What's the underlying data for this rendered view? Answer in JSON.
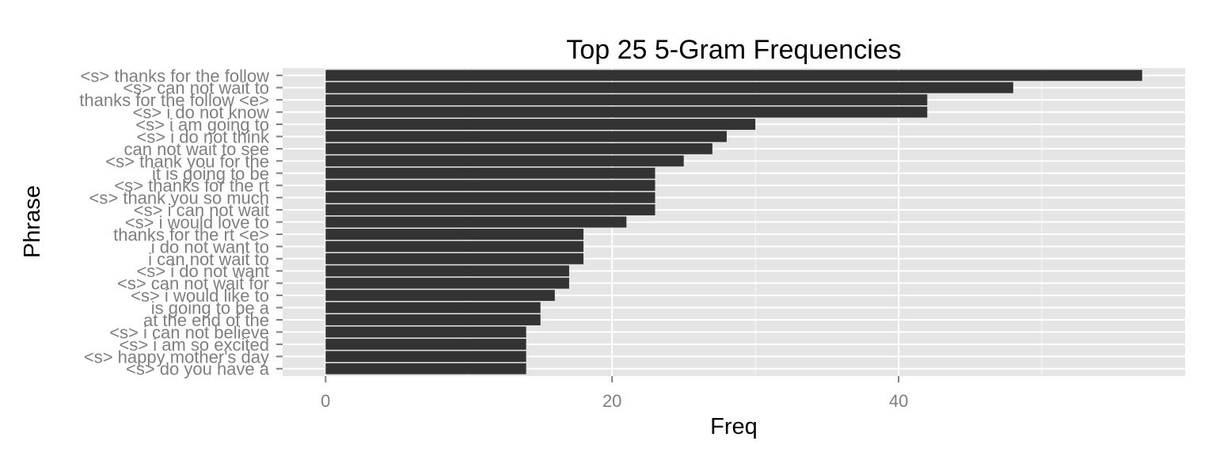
{
  "chart_data": {
    "type": "bar",
    "orientation": "horizontal",
    "title": "Top 25 5-Gram Frequencies",
    "xlabel": "Freq",
    "ylabel": "Phrase",
    "xlim": [
      -3,
      60
    ],
    "x_ticks": [
      0,
      20,
      40
    ],
    "grid": true,
    "categories": [
      "<s> thanks for the follow",
      "<s> can not wait to",
      "thanks for the follow <e>",
      "<s> i do not know",
      "<s> i am going to",
      "<s> i do not think",
      "can not wait to see",
      "<s> thank you for the",
      "it is going to be",
      "<s> thanks for the rt",
      "<s> thank you so much",
      "<s> i can not wait",
      "<s> i would love to",
      "thanks for the rt <e>",
      "i do not want to",
      "i can not wait to",
      "<s> i do not want",
      "<s> can not wait for",
      "<s> i would like to",
      "is going to be a",
      "at the end of the",
      "<s> i can not believe",
      "<s> i am so excited",
      "<s> happy mother's day",
      "<s> do you have a"
    ],
    "values": [
      57,
      48,
      42,
      42,
      30,
      28,
      27,
      25,
      23,
      23,
      23,
      23,
      21,
      18,
      18,
      18,
      17,
      17,
      16,
      15,
      15,
      14,
      14,
      14,
      14
    ]
  },
  "colors": {
    "bar": "#333333",
    "panel": "#e5e5e5",
    "grid_major": "#ffffff",
    "grid_minor": "#f2f2f2",
    "tick_text": "#7f7f7f",
    "tick_mark": "#7f7f7f"
  }
}
